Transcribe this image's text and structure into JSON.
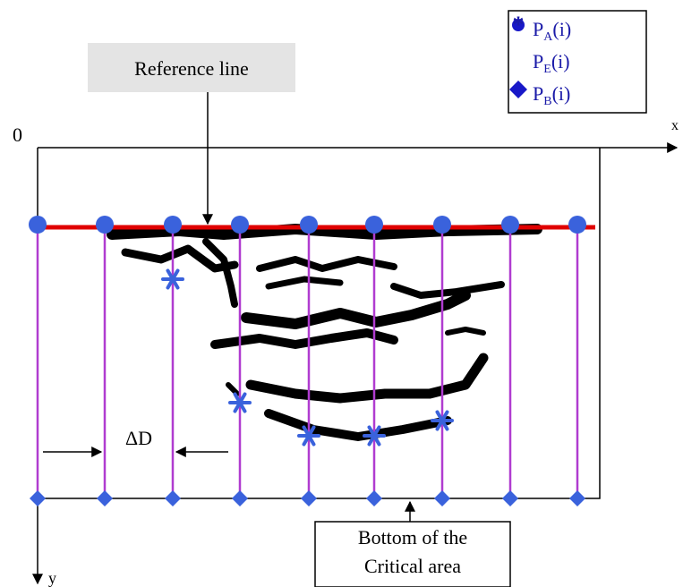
{
  "reference_label": "Reference line",
  "legend": [
    {
      "base": "P",
      "sub": "A",
      "rest": "(i)"
    },
    {
      "base": "P",
      "sub": "E",
      "rest": "(i)"
    },
    {
      "base": "P",
      "sub": "B",
      "rest": "(i)"
    }
  ],
  "axes": {
    "origin": "0",
    "x": "x",
    "y": "y"
  },
  "spacing_label": "ΔD",
  "bottom_label": [
    "Bottom of the",
    "Critical area"
  ]
}
